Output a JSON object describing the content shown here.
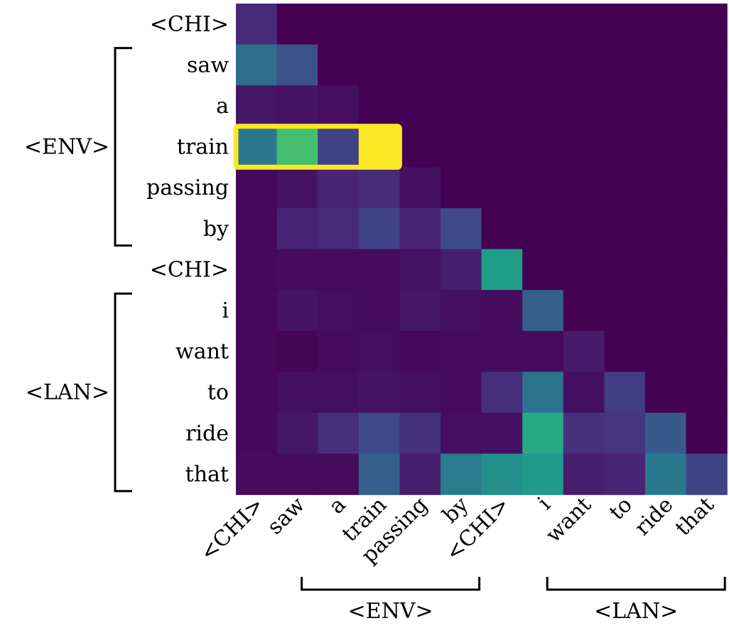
{
  "chart_data": {
    "type": "heatmap",
    "title": "",
    "xlabel": "",
    "ylabel": "",
    "colormap": "viridis",
    "vmin": 0,
    "vmax": 1,
    "row_labels": [
      "<CHI>",
      "saw",
      "a",
      "train",
      "passing",
      "by",
      "<CHI>",
      "i",
      "want",
      "to",
      "ride",
      "that"
    ],
    "col_labels": [
      "<CHI>",
      "saw",
      "a",
      "train",
      "passing",
      "by",
      "<CHI>",
      "i",
      "want",
      "to",
      "ride",
      "that"
    ],
    "values": [
      [
        0.12,
        0.0,
        0.0,
        0.0,
        0.0,
        0.0,
        0.0,
        0.0,
        0.0,
        0.0,
        0.0,
        0.0
      ],
      [
        0.35,
        0.25,
        0.0,
        0.0,
        0.0,
        0.0,
        0.0,
        0.0,
        0.0,
        0.0,
        0.0,
        0.0
      ],
      [
        0.06,
        0.05,
        0.04,
        0.0,
        0.0,
        0.0,
        0.0,
        0.0,
        0.0,
        0.0,
        0.0,
        0.0
      ],
      [
        0.4,
        0.7,
        0.2,
        1.0,
        0.0,
        0.0,
        0.0,
        0.0,
        0.0,
        0.0,
        0.0,
        0.0
      ],
      [
        0.02,
        0.05,
        0.1,
        0.12,
        0.04,
        0.0,
        0.0,
        0.0,
        0.0,
        0.0,
        0.0,
        0.0
      ],
      [
        0.02,
        0.1,
        0.12,
        0.2,
        0.1,
        0.22,
        0.0,
        0.0,
        0.0,
        0.0,
        0.0,
        0.0
      ],
      [
        0.02,
        0.03,
        0.03,
        0.03,
        0.05,
        0.08,
        0.55,
        0.0,
        0.0,
        0.0,
        0.0,
        0.0
      ],
      [
        0.02,
        0.05,
        0.04,
        0.03,
        0.06,
        0.04,
        0.03,
        0.3,
        0.0,
        0.0,
        0.0,
        0.0
      ],
      [
        0.02,
        0.01,
        0.03,
        0.04,
        0.02,
        0.03,
        0.03,
        0.03,
        0.07,
        0.0,
        0.0,
        0.0
      ],
      [
        0.02,
        0.04,
        0.04,
        0.05,
        0.04,
        0.03,
        0.13,
        0.38,
        0.04,
        0.18,
        0.0,
        0.0
      ],
      [
        0.02,
        0.06,
        0.13,
        0.22,
        0.14,
        0.04,
        0.04,
        0.6,
        0.14,
        0.15,
        0.28,
        0.0
      ],
      [
        0.03,
        0.03,
        0.03,
        0.3,
        0.08,
        0.42,
        0.5,
        0.54,
        0.08,
        0.1,
        0.4,
        0.2
      ]
    ],
    "highlight": {
      "row": 3,
      "col_start": 0,
      "col_end": 3,
      "color": "#fde725"
    },
    "row_groups": [
      {
        "label": "<ENV>",
        "start": 1,
        "end": 5
      },
      {
        "label": "<LAN>",
        "start": 7,
        "end": 11
      }
    ],
    "col_groups": [
      {
        "label": "<ENV>",
        "start": 1,
        "end": 5
      },
      {
        "label": "<LAN>",
        "start": 7,
        "end": 11
      }
    ],
    "grid": false,
    "legend": "none"
  }
}
